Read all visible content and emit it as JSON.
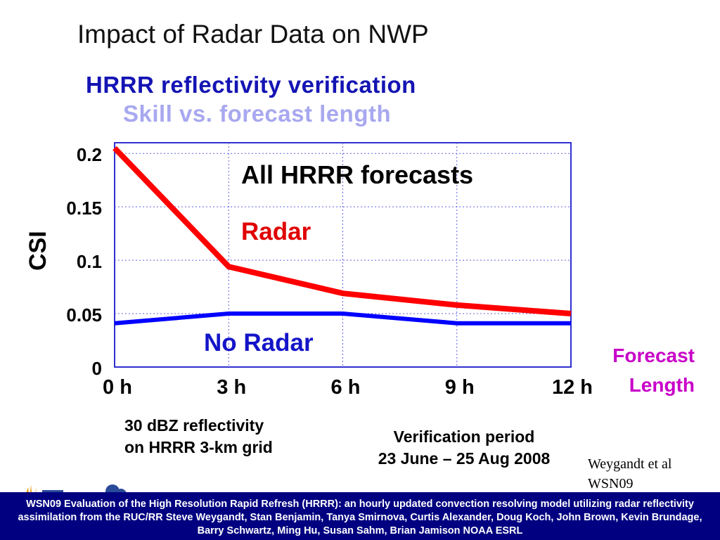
{
  "slide": {
    "title": "Impact of Radar Data on NWP",
    "notes": {
      "reflectivity_line1": "30 dBZ reflectivity",
      "reflectivity_line2": "on HRRR 3-km grid",
      "verification_line1": "Verification period",
      "verification_line2": "23 June – 25 Aug 2008"
    },
    "credit_line1": "Weygandt et al",
    "credit_line2": "WSN09",
    "footer": "WSN09 Evaluation of the High Resolution Rapid Refresh (HRRR): an hourly updated convection resolving model utilizing radar reflectivity assimilation from the RUC/RR Steve Weygandt, Stan Benjamin, Tanya Smirnova, Curtis Alexander, Doug Koch, John Brown, Kevin Brundage, Barry Schwartz, Ming Hu, Susan Sahm, Brian Jamison NOAA ESRL"
  },
  "chart_data": {
    "type": "line",
    "title": "HRRR reflectivity verification",
    "subtitle": "Skill vs. forecast length",
    "ylabel": "CSI",
    "xlabel_line1": "Forecast",
    "xlabel_line2": "Length",
    "annotation": "All HRRR forecasts",
    "x": [
      0,
      3,
      6,
      9,
      12
    ],
    "x_tick_labels": [
      "0 h",
      "3 h",
      "6 h",
      "9 h",
      "12 h"
    ],
    "y_ticks": [
      0,
      0.05,
      0.1,
      0.15,
      0.2
    ],
    "y_tick_labels": [
      "0",
      "0.05",
      "0.1",
      "0.15",
      "0.2"
    ],
    "xlim": [
      0,
      12
    ],
    "ylim": [
      0,
      0.21
    ],
    "grid": true,
    "series": [
      {
        "name": "Radar",
        "color": "#ff0000",
        "values": [
          0.205,
          0.094,
          0.069,
          0.058,
          0.05
        ]
      },
      {
        "name": "No Radar",
        "color": "#0000ff",
        "values": [
          0.041,
          0.05,
          0.05,
          0.041,
          0.041
        ]
      }
    ]
  }
}
